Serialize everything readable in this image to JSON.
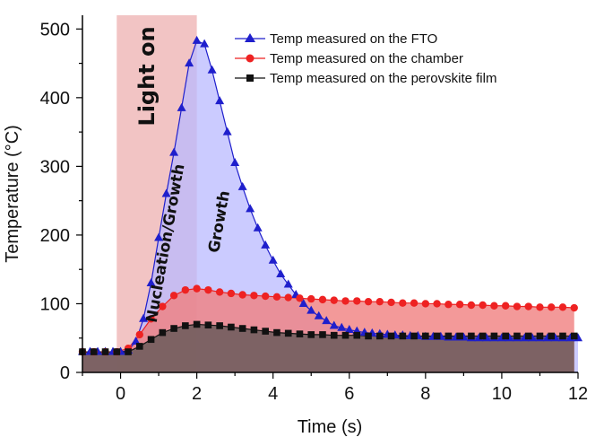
{
  "chart_data": {
    "type": "line",
    "title": "",
    "xlabel": "Time (s)",
    "ylabel": "Temperature (°C)",
    "xlim": [
      -1,
      12
    ],
    "ylim": [
      0,
      520
    ],
    "xticks": [
      0,
      2,
      4,
      6,
      8,
      10,
      12
    ],
    "yticks": [
      0,
      100,
      200,
      300,
      400,
      500
    ],
    "grid": false,
    "legend_position": "top-right",
    "light_on_interval": [
      -0.1,
      2.0
    ],
    "annotations": {
      "light_on": "Light on",
      "nucleation_growth": "Nucleation/Growth",
      "growth": "Growth"
    },
    "series": [
      {
        "name": "Temp measured on the FTO",
        "color": "#1f1fcc",
        "fill": "#b9b9ff",
        "marker": "triangle",
        "x": [
          -1.0,
          -0.8,
          -0.6,
          -0.4,
          -0.2,
          0.0,
          0.2,
          0.4,
          0.6,
          0.8,
          1.0,
          1.2,
          1.4,
          1.6,
          1.8,
          2.0,
          2.2,
          2.4,
          2.6,
          2.8,
          3.0,
          3.2,
          3.4,
          3.6,
          3.8,
          4.0,
          4.2,
          4.4,
          4.6,
          4.8,
          5.0,
          5.2,
          5.4,
          5.6,
          5.8,
          6.0,
          6.2,
          6.4,
          6.6,
          6.8,
          7.0,
          7.2,
          7.4,
          7.6,
          7.8,
          8.0,
          8.2,
          8.4,
          8.6,
          8.8,
          9.0,
          9.2,
          9.4,
          9.6,
          9.8,
          10.0,
          10.2,
          10.4,
          10.6,
          10.8,
          11.0,
          11.2,
          11.4,
          11.6,
          11.8,
          12.0
        ],
        "y": [
          30,
          30,
          30,
          30,
          30,
          30,
          32,
          45,
          78,
          130,
          196,
          260,
          320,
          385,
          450,
          483,
          478,
          440,
          395,
          350,
          305,
          270,
          238,
          210,
          185,
          163,
          143,
          128,
          113,
          100,
          90,
          82,
          75,
          68,
          65,
          62,
          60,
          58,
          57,
          56,
          55,
          54,
          54,
          53,
          53,
          52,
          52,
          52,
          51,
          51,
          51,
          50,
          50,
          50,
          50,
          50,
          50,
          50,
          50,
          50,
          50,
          50,
          50,
          50,
          50,
          50
        ]
      },
      {
        "name": "Temp measured on the chamber",
        "color": "#ee2222",
        "fill": "#f08080",
        "marker": "circle",
        "x": [
          -1.0,
          -0.7,
          -0.4,
          -0.1,
          0.2,
          0.5,
          0.8,
          1.1,
          1.4,
          1.7,
          2.0,
          2.3,
          2.6,
          2.9,
          3.2,
          3.5,
          3.8,
          4.1,
          4.4,
          4.7,
          5.0,
          5.3,
          5.6,
          5.9,
          6.2,
          6.5,
          6.8,
          7.1,
          7.4,
          7.7,
          8.0,
          8.3,
          8.6,
          8.9,
          9.2,
          9.5,
          9.8,
          10.1,
          10.4,
          10.7,
          11.0,
          11.3,
          11.6,
          11.9
        ],
        "y": [
          30,
          30,
          30,
          30,
          35,
          55,
          78,
          96,
          112,
          120,
          122,
          120,
          117,
          115,
          113,
          112,
          111,
          110,
          109,
          108,
          107,
          106,
          105,
          104,
          104,
          103,
          103,
          102,
          101,
          101,
          100,
          100,
          99,
          99,
          98,
          98,
          97,
          97,
          96,
          96,
          95,
          95,
          95,
          94
        ]
      },
      {
        "name": "Temp measured on the perovskite film",
        "color": "#111111",
        "fill": "#6a5a5a",
        "marker": "square",
        "x": [
          -1.0,
          -0.7,
          -0.4,
          -0.1,
          0.2,
          0.5,
          0.8,
          1.1,
          1.4,
          1.7,
          2.0,
          2.3,
          2.6,
          2.9,
          3.2,
          3.5,
          3.8,
          4.1,
          4.4,
          4.7,
          5.0,
          5.3,
          5.6,
          5.9,
          6.2,
          6.5,
          6.8,
          7.1,
          7.4,
          7.7,
          8.0,
          8.3,
          8.6,
          8.9,
          9.2,
          9.5,
          9.8,
          10.1,
          10.4,
          10.7,
          11.0,
          11.3,
          11.6,
          11.9
        ],
        "y": [
          30,
          30,
          30,
          30,
          30,
          38,
          48,
          58,
          64,
          68,
          70,
          69,
          68,
          66,
          64,
          62,
          60,
          58,
          57,
          56,
          55,
          55,
          54,
          54,
          54,
          53,
          53,
          53,
          53,
          53,
          53,
          53,
          53,
          53,
          53,
          53,
          53,
          53,
          53,
          53,
          53,
          53,
          53,
          53
        ]
      }
    ]
  }
}
